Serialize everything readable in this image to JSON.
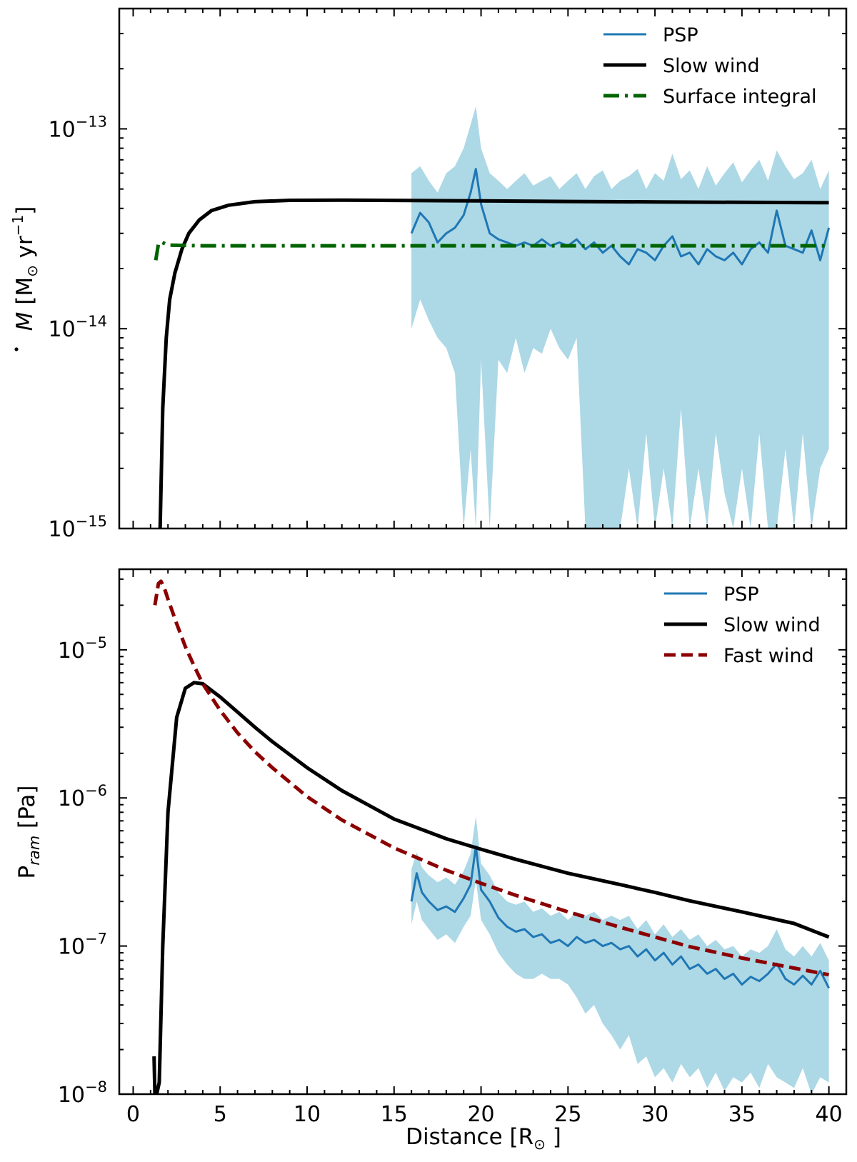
{
  "chart_data": [
    {
      "type": "line",
      "panel": "top",
      "yscale": "log",
      "ylim": [
        1e-15,
        4e-13
      ],
      "xlim": [
        -0.8,
        41.0
      ],
      "ylabel_parts": {
        "main": "M",
        "bracket_open": " [M",
        "sun": "⊙",
        "unit": " yr",
        "exp": "−1",
        "bracket_close": "]"
      },
      "yticks": [
        {
          "value": 1e-15,
          "base": "10",
          "exp": "−15"
        },
        {
          "value": 1e-14,
          "base": "10",
          "exp": "−14"
        },
        {
          "value": 1e-13,
          "base": "10",
          "exp": "−13"
        }
      ],
      "legend": {
        "position": "top-right",
        "entries": [
          "PSP",
          "Slow wind",
          "Surface integral"
        ]
      },
      "series": [
        {
          "name": "PSP",
          "color": "#1f77b4",
          "style": "solid",
          "x": [
            16.0,
            16.5,
            17.0,
            17.5,
            18.0,
            18.5,
            19.0,
            19.4,
            19.7,
            20.0,
            20.5,
            21.0,
            21.5,
            22.0,
            22.5,
            23.0,
            23.5,
            24.0,
            24.5,
            25.0,
            25.5,
            26.0,
            26.5,
            27.0,
            27.5,
            28.0,
            28.5,
            29.0,
            29.5,
            30.0,
            30.5,
            31.0,
            31.5,
            32.0,
            32.5,
            33.0,
            33.5,
            34.0,
            34.5,
            35.0,
            35.5,
            36.0,
            36.5,
            37.0,
            37.5,
            38.0,
            38.5,
            39.0,
            39.5,
            40.0
          ],
          "values": [
            3e-14,
            3.8e-14,
            3.4e-14,
            2.7e-14,
            3e-14,
            3.2e-14,
            3.7e-14,
            4.8e-14,
            6.3e-14,
            4.2e-14,
            3e-14,
            2.8e-14,
            2.7e-14,
            2.6e-14,
            2.7e-14,
            2.6e-14,
            2.8e-14,
            2.6e-14,
            2.7e-14,
            2.6e-14,
            2.8e-14,
            2.5e-14,
            2.7e-14,
            2.4e-14,
            2.6e-14,
            2.3e-14,
            2.1e-14,
            2.5e-14,
            2.4e-14,
            2.2e-14,
            2.6e-14,
            2.9e-14,
            2.3e-14,
            2.4e-14,
            2.1e-14,
            2.5e-14,
            2.3e-14,
            2.2e-14,
            2.4e-14,
            2.1e-14,
            2.5e-14,
            2.7e-14,
            2.4e-14,
            3.9e-14,
            2.6e-14,
            2.5e-14,
            2.4e-14,
            3.1e-14,
            2.2e-14,
            3.2e-14
          ]
        },
        {
          "name": "PSP uncertainty band",
          "color": "#add8e6",
          "style": "fill",
          "x": [
            16.0,
            16.5,
            17.0,
            17.5,
            18.0,
            18.5,
            19.0,
            19.4,
            19.7,
            20.0,
            20.5,
            21.0,
            21.5,
            22.0,
            22.5,
            23.0,
            23.5,
            24.0,
            24.5,
            25.0,
            25.5,
            26.0,
            26.5,
            27.0,
            27.5,
            28.0,
            28.5,
            29.0,
            29.5,
            30.0,
            30.5,
            31.0,
            31.5,
            32.0,
            32.5,
            33.0,
            33.5,
            34.0,
            34.5,
            35.0,
            35.5,
            36.0,
            36.5,
            37.0,
            37.5,
            38.0,
            38.5,
            39.0,
            39.5,
            40.0
          ],
          "upper": [
            6e-14,
            6.5e-14,
            5.5e-14,
            4.8e-14,
            6e-14,
            6.5e-14,
            8e-14,
            1.05e-13,
            1.3e-13,
            8e-14,
            6e-14,
            5.5e-14,
            5e-14,
            5.5e-14,
            6e-14,
            5.2e-14,
            5.5e-14,
            5.8e-14,
            5e-14,
            5.5e-14,
            6e-14,
            5e-14,
            5.8e-14,
            6.2e-14,
            5e-14,
            5.5e-14,
            5.8e-14,
            6.3e-14,
            5e-14,
            6e-14,
            5.5e-14,
            7.5e-14,
            5.6e-14,
            6.2e-14,
            5e-14,
            6.5e-14,
            5.2e-14,
            6e-14,
            6.8e-14,
            5.4e-14,
            6.2e-14,
            7e-14,
            5.5e-14,
            7.8e-14,
            6.5e-14,
            5.6e-14,
            6e-14,
            7e-14,
            5e-14,
            6.2e-14
          ],
          "lower": [
            1e-14,
            1.4e-14,
            1.1e-14,
            9e-15,
            8e-15,
            6e-15,
            1e-15,
            2.5e-15,
            1e-15,
            7e-15,
            1e-15,
            7e-15,
            6e-15,
            9e-15,
            6e-15,
            8e-15,
            7.5e-15,
            1e-14,
            8e-15,
            7e-15,
            9e-15,
            1e-15,
            1e-15,
            1e-15,
            1e-15,
            1e-15,
            2e-15,
            1e-15,
            3e-15,
            1e-15,
            2e-15,
            1e-15,
            4e-15,
            1e-15,
            2e-15,
            1e-15,
            3e-15,
            1.5e-15,
            1e-15,
            2e-15,
            1e-15,
            3e-15,
            1e-15,
            1e-15,
            2.5e-15,
            1e-15,
            3e-15,
            1e-15,
            2e-15,
            2.5e-15
          ]
        },
        {
          "name": "Slow wind",
          "color": "#000000",
          "style": "solid",
          "x": [
            1.55,
            1.7,
            1.9,
            2.1,
            2.4,
            2.8,
            3.2,
            3.8,
            4.5,
            5.5,
            7,
            9,
            12,
            16,
            20,
            25,
            30,
            35,
            40
          ],
          "values": [
            1e-15,
            4e-15,
            9e-15,
            1.4e-14,
            1.9e-14,
            2.5e-14,
            3e-14,
            3.5e-14,
            3.9e-14,
            4.15e-14,
            4.32e-14,
            4.39e-14,
            4.4e-14,
            4.38e-14,
            4.36e-14,
            4.33e-14,
            4.31e-14,
            4.29e-14,
            4.27e-14
          ]
        },
        {
          "name": "Surface integral",
          "color": "#006400",
          "style": "dashdot",
          "x": [
            1.3,
            1.45,
            1.6,
            2.0,
            4.0,
            10,
            20,
            30,
            40
          ],
          "values": [
            2.2e-14,
            2.65e-14,
            2.72e-14,
            2.62e-14,
            2.6e-14,
            2.6e-14,
            2.6e-14,
            2.6e-14,
            2.6e-14
          ]
        }
      ]
    },
    {
      "type": "line",
      "panel": "bottom",
      "yscale": "log",
      "ylim": [
        1e-08,
        3.5e-05
      ],
      "xlim": [
        -0.8,
        41.0
      ],
      "ylabel_parts": {
        "main": "P",
        "sub": "ram",
        "unit": " [Pa]"
      },
      "xlabel_parts": {
        "main": "Distance [R",
        "sun": "⊙",
        "close": " ]"
      },
      "xticks": [
        "0",
        "5",
        "10",
        "15",
        "20",
        "25",
        "30",
        "35",
        "40"
      ],
      "yticks": [
        {
          "value": 1e-08,
          "base": "10",
          "exp": "−8"
        },
        {
          "value": 1e-07,
          "base": "10",
          "exp": "−7"
        },
        {
          "value": 1e-06,
          "base": "10",
          "exp": "−6"
        },
        {
          "value": 1e-05,
          "base": "10",
          "exp": "−5"
        }
      ],
      "legend": {
        "position": "top-right",
        "entries": [
          "PSP",
          "Slow wind",
          "Fast wind"
        ]
      },
      "series": [
        {
          "name": "PSP",
          "color": "#1f77b4",
          "style": "solid",
          "x": [
            16.0,
            16.3,
            16.6,
            17.0,
            17.5,
            18.0,
            18.5,
            19.0,
            19.4,
            19.7,
            20.0,
            20.5,
            21.0,
            21.5,
            22.0,
            22.5,
            23.0,
            23.5,
            24.0,
            24.5,
            25.0,
            25.5,
            26.0,
            26.5,
            27.0,
            27.5,
            28.0,
            28.5,
            29.0,
            29.5,
            30.0,
            30.5,
            31.0,
            31.5,
            32.0,
            32.5,
            33.0,
            33.5,
            34.0,
            34.5,
            35.0,
            35.5,
            36.0,
            36.5,
            37.0,
            37.5,
            38.0,
            38.5,
            39.0,
            39.5,
            40.0
          ],
          "values": [
            2e-07,
            3.1e-07,
            2.3e-07,
            2e-07,
            1.75e-07,
            1.85e-07,
            1.7e-07,
            2.1e-07,
            2.6e-07,
            4.7e-07,
            2.4e-07,
            2e-07,
            1.55e-07,
            1.35e-07,
            1.25e-07,
            1.3e-07,
            1.15e-07,
            1.2e-07,
            1.05e-07,
            1.1e-07,
            1e-07,
            1.15e-07,
            1.05e-07,
            1.1e-07,
            1e-07,
            1.05e-07,
            9.5e-08,
            1e-07,
            8.5e-08,
            9.5e-08,
            8e-08,
            9e-08,
            7.5e-08,
            8.5e-08,
            7e-08,
            7.5e-08,
            6.5e-08,
            7e-08,
            6e-08,
            6.5e-08,
            5.5e-08,
            6.2e-08,
            5.8e-08,
            6.5e-08,
            7.6e-08,
            6e-08,
            5.5e-08,
            6.3e-08,
            5.5e-08,
            6.8e-08,
            5.2e-08
          ]
        },
        {
          "name": "PSP uncertainty band",
          "color": "#add8e6",
          "style": "fill",
          "x": [
            16.0,
            16.3,
            16.6,
            17.0,
            17.5,
            18.0,
            18.5,
            19.0,
            19.4,
            19.7,
            20.0,
            20.5,
            21.0,
            21.5,
            22.0,
            22.5,
            23.0,
            23.5,
            24.0,
            24.5,
            25.0,
            25.5,
            26.0,
            26.5,
            27.0,
            27.5,
            28.0,
            28.5,
            29.0,
            29.5,
            30.0,
            30.5,
            31.0,
            31.5,
            32.0,
            32.5,
            33.0,
            33.5,
            34.0,
            34.5,
            35.0,
            35.5,
            36.0,
            36.5,
            37.0,
            37.5,
            38.0,
            38.5,
            39.0,
            39.5,
            40.0
          ],
          "upper": [
            3.3e-07,
            4.3e-07,
            3.4e-07,
            3e-07,
            2.7e-07,
            2.9e-07,
            2.6e-07,
            3.2e-07,
            4.2e-07,
            7.5e-07,
            3.6e-07,
            3e-07,
            2.3e-07,
            2e-07,
            1.9e-07,
            2e-07,
            1.7e-07,
            1.8e-07,
            1.6e-07,
            1.7e-07,
            1.5e-07,
            1.7e-07,
            1.6e-07,
            1.7e-07,
            1.5e-07,
            1.6e-07,
            1.5e-07,
            1.6e-07,
            1.3e-07,
            1.5e-07,
            1.2e-07,
            1.4e-07,
            1.15e-07,
            1.3e-07,
            1.1e-07,
            1.2e-07,
            1e-07,
            1.1e-07,
            9.5e-08,
            1e-07,
            8.5e-08,
            9.5e-08,
            9e-08,
            1e-07,
            1.3e-07,
            9.5e-08,
            8.5e-08,
            1e-07,
            8.5e-08,
            1.05e-07,
            8e-08
          ],
          "lower": [
            1.4e-07,
            2e-07,
            1.5e-07,
            1.3e-07,
            1.1e-07,
            1.2e-07,
            1.05e-07,
            1.35e-07,
            1.6e-07,
            2.8e-07,
            1.5e-07,
            1.2e-07,
            9e-08,
            7.5e-08,
            6.5e-08,
            6e-08,
            6e-08,
            6.5e-08,
            6e-08,
            6e-08,
            5.5e-08,
            4.5e-08,
            3.5e-08,
            4e-08,
            3e-08,
            2.5e-08,
            2e-08,
            2.5e-08,
            1.6e-08,
            1.8e-08,
            1.3e-08,
            1.5e-08,
            1.2e-08,
            1.6e-08,
            1.3e-08,
            1.5e-08,
            1.1e-08,
            1.4e-08,
            1.05e-08,
            1.3e-08,
            1.2e-08,
            1.4e-08,
            1.1e-08,
            1.6e-08,
            1.3e-08,
            1.2e-08,
            1.1e-08,
            1.5e-08,
            1e-08,
            1.3e-08,
            1.2e-08
          ]
        },
        {
          "name": "Slow wind",
          "color": "#000000",
          "style": "solid",
          "x": [
            1.2,
            1.25,
            1.35,
            1.5,
            1.7,
            2.0,
            2.5,
            3.0,
            3.5,
            4.0,
            5,
            6,
            7,
            8,
            10,
            12,
            15,
            18,
            20,
            22,
            25,
            28,
            30,
            32,
            35,
            38,
            40
          ],
          "values": [
            1.8e-08,
            1e-08,
            1e-08,
            1.2e-08,
            1e-07,
            8e-07,
            3.5e-06,
            5.5e-06,
            6e-06,
            5.9e-06,
            4.8e-06,
            3.8e-06,
            3e-06,
            2.4e-06,
            1.6e-06,
            1.12e-06,
            7.2e-07,
            5.3e-07,
            4.5e-07,
            3.85e-07,
            3.1e-07,
            2.6e-07,
            2.3e-07,
            2.02e-07,
            1.7e-07,
            1.42e-07,
            1.15e-07
          ]
        },
        {
          "name": "Fast wind",
          "color": "#8b0000",
          "style": "dashed",
          "x": [
            1.25,
            1.45,
            1.6,
            1.8,
            2.0,
            2.5,
            3.0,
            3.5,
            4.0,
            5,
            6,
            7,
            8,
            10,
            12,
            15,
            18,
            20,
            22,
            25,
            28,
            30,
            32,
            35,
            38,
            40
          ],
          "values": [
            2e-05,
            2.8e-05,
            2.9e-05,
            2.6e-05,
            2.2e-05,
            1.5e-05,
            1.05e-05,
            7.8e-06,
            5.9e-06,
            3.9e-06,
            2.75e-06,
            2.05e-06,
            1.6e-06,
            1.02e-06,
            7.1e-07,
            4.6e-07,
            3.25e-07,
            2.65e-07,
            2.2e-07,
            1.7e-07,
            1.34e-07,
            1.15e-07,
            9.9e-08,
            8.3e-08,
            7.1e-08,
            6.4e-08
          ]
        }
      ]
    }
  ]
}
